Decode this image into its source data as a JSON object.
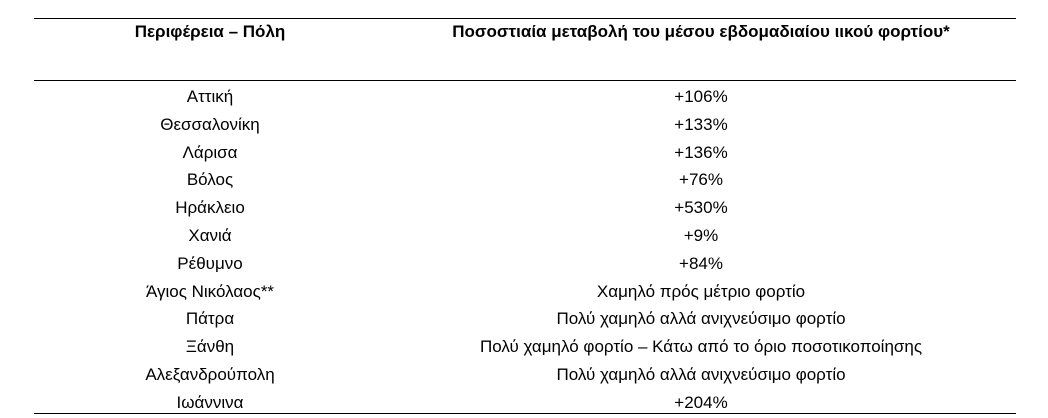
{
  "table": {
    "headers": [
      "Περιφέρεια – Πόλη",
      "Ποσοστιαία μεταβολή του μέσου εβδομαδιαίου ιικού φορτίου*"
    ],
    "rows": [
      {
        "city": "Αττική",
        "change": "+106%"
      },
      {
        "city": "Θεσσαλονίκη",
        "change": "+133%"
      },
      {
        "city": "Λάρισα",
        "change": "+136%"
      },
      {
        "city": "Βόλος",
        "change": "+76%"
      },
      {
        "city": "Ηράκλειο",
        "change": "+530%"
      },
      {
        "city": "Χανιά",
        "change": "+9%"
      },
      {
        "city": "Ρέθυμνο",
        "change": "+84%"
      },
      {
        "city": "Άγιος Νικόλαος**",
        "change": "Χαμηλό πρός μέτριο φορτίο"
      },
      {
        "city": "Πάτρα",
        "change": "Πολύ χαμηλό αλλά ανιχνεύσιμο φορτίο"
      },
      {
        "city": "Ξάνθη",
        "change": "Πολύ χαμηλό φορτίο – Κάτω από το όριο ποσοτικοποίησης"
      },
      {
        "city": "Αλεξανδρούπολη",
        "change": "Πολύ χαμηλό αλλά ανιχνεύσιμο φορτίο"
      },
      {
        "city": "Ιωάννινα",
        "change": "+204%"
      }
    ]
  }
}
